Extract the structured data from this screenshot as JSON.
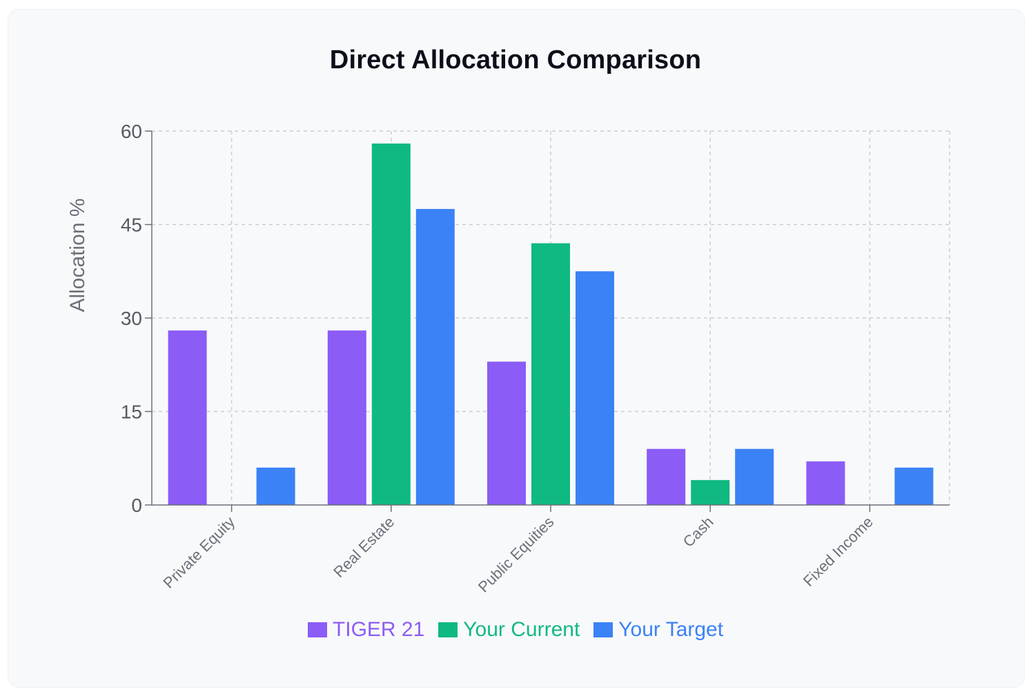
{
  "chart_data": {
    "type": "bar",
    "title": "Direct Allocation Comparison",
    "ylabel": "Allocation %",
    "xlabel": "",
    "categories": [
      "Private Equity",
      "Real Estate",
      "Public Equities",
      "Cash",
      "Fixed Income"
    ],
    "series": [
      {
        "name": "TIGER 21",
        "color": "#8b5cf6",
        "values": [
          28,
          28,
          23,
          9,
          7
        ]
      },
      {
        "name": "Your Current",
        "color": "#10b981",
        "values": [
          0,
          58,
          42,
          4,
          0
        ]
      },
      {
        "name": "Your Target",
        "color": "#3b82f6",
        "values": [
          6,
          47.5,
          37.5,
          9,
          6
        ]
      }
    ],
    "ylim": [
      0,
      60
    ],
    "yticks": [
      0,
      15,
      30,
      45,
      60
    ],
    "grid": true,
    "legend_position": "bottom"
  }
}
